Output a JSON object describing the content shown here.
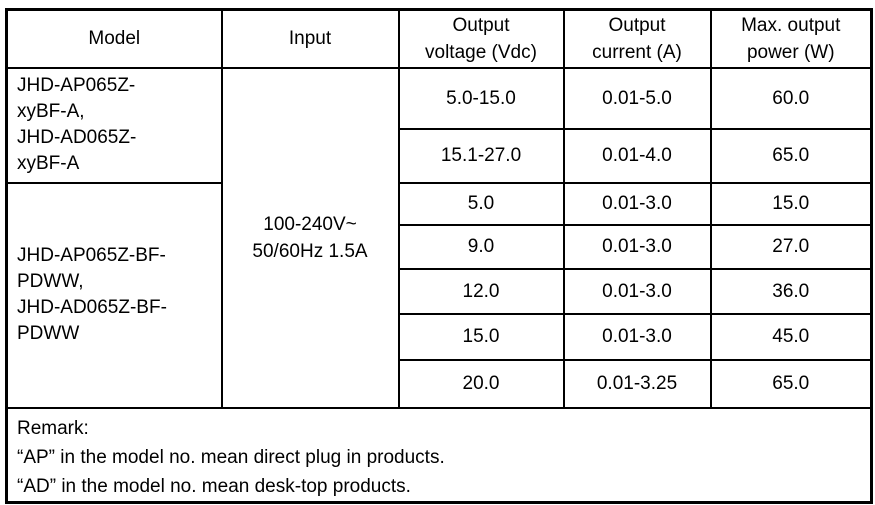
{
  "page": {
    "background_color": "#ffffff",
    "border_color": "#000000",
    "text_color": "#000000"
  },
  "table": {
    "headers": [
      "Model",
      "Input",
      "Output\nvoltage (Vdc)",
      "Output\ncurrent (A)",
      "Max. output\npower (W)"
    ],
    "model_groups": [
      {
        "label": "JHD-AP065Z-\nxyBF-A,\nJHD-AD065Z-\nxyBF-A"
      },
      {
        "label": "JHD-AP065Z-BF-\nPDWW,\nJHD-AD065Z-BF-\nPDWW"
      }
    ],
    "input_value": "100-240V~\n50/60Hz 1.5A",
    "rows": [
      {
        "output_voltage": "5.0-15.0",
        "output_current": "0.01-5.0",
        "max_power": "60.0"
      },
      {
        "output_voltage": "15.1-27.0",
        "output_current": "0.01-4.0",
        "max_power": "65.0"
      },
      {
        "output_voltage": "5.0",
        "output_current": "0.01-3.0",
        "max_power": "15.0"
      },
      {
        "output_voltage": "9.0",
        "output_current": "0.01-3.0",
        "max_power": "27.0"
      },
      {
        "output_voltage": "12.0",
        "output_current": "0.01-3.0",
        "max_power": "36.0"
      },
      {
        "output_voltage": "15.0",
        "output_current": "0.01-3.0",
        "max_power": "45.0"
      },
      {
        "output_voltage": "20.0",
        "output_current": "0.01-3.25",
        "max_power": "65.0"
      }
    ],
    "remark": {
      "title": "Remark:",
      "lines": [
        "“AP” in the model no. mean direct plug in products.",
        "“AD” in the model no. mean desk-top products."
      ]
    }
  }
}
